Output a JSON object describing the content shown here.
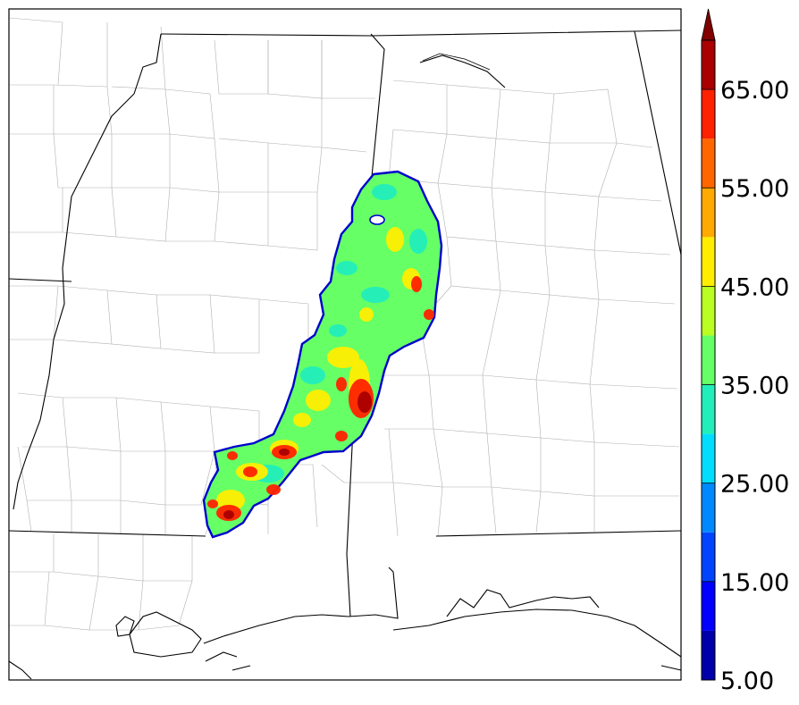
{
  "colorbar": {
    "labels": [
      "5.00",
      "15.00",
      "25.00",
      "35.00",
      "45.00",
      "55.00",
      "65.00"
    ],
    "bins": [
      {
        "min": 5,
        "max": 10,
        "color": "#0000aa"
      },
      {
        "min": 10,
        "max": 15,
        "color": "#0000ff"
      },
      {
        "min": 15,
        "max": 20,
        "color": "#0044ff"
      },
      {
        "min": 20,
        "max": 25,
        "color": "#0088ff"
      },
      {
        "min": 25,
        "max": 30,
        "color": "#00ddff"
      },
      {
        "min": 30,
        "max": 35,
        "color": "#22eebb"
      },
      {
        "min": 35,
        "max": 40,
        "color": "#66ff66"
      },
      {
        "min": 40,
        "max": 45,
        "color": "#bbff22"
      },
      {
        "min": 45,
        "max": 50,
        "color": "#ffee00"
      },
      {
        "min": 50,
        "max": 55,
        "color": "#ffaa00"
      },
      {
        "min": 55,
        "max": 60,
        "color": "#ff6600"
      },
      {
        "min": 60,
        "max": 65,
        "color": "#ff2200"
      },
      {
        "min": 65,
        "max": 70,
        "color": "#aa0000"
      }
    ],
    "extend": "max",
    "extend_color": "#800000"
  },
  "field_colors": {
    "outline": "#0000cc",
    "background": "#66ff66",
    "mid": "#22eebb",
    "warm": "#ffee00",
    "hot": "#ff2200",
    "core": "#aa0000"
  }
}
